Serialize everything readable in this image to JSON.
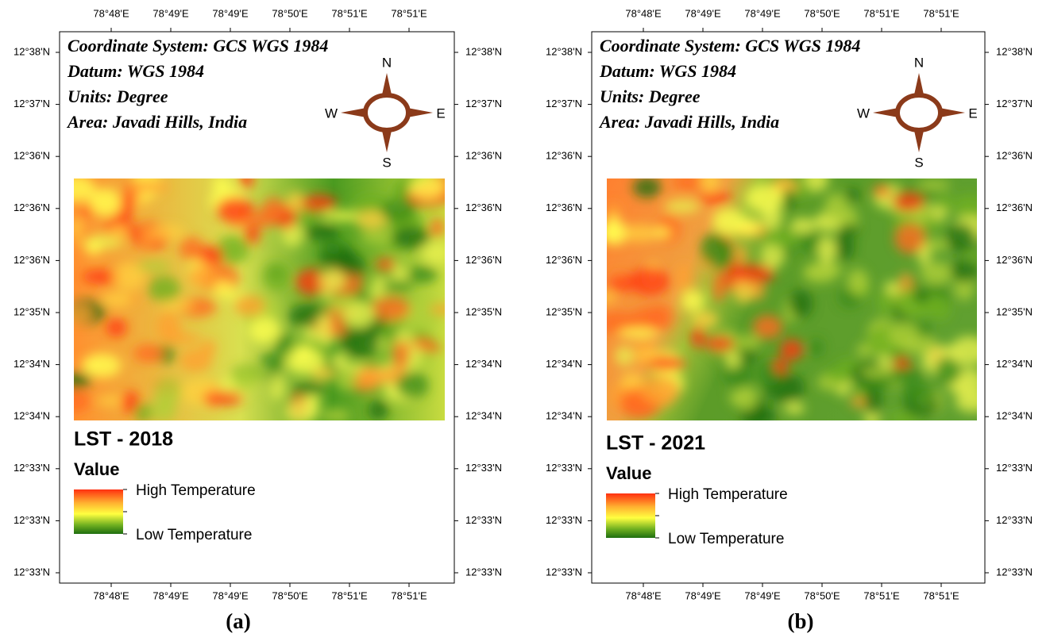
{
  "panels": [
    {
      "caption": "(a)",
      "title": "LST - 2018",
      "info": [
        "Coordinate System: GCS WGS 1984",
        "Datum: WGS 1984",
        "Units: Degree",
        "Area: Javadi Hills, India"
      ],
      "compass": {
        "north": "N",
        "east": "E",
        "south": "S",
        "west": "W"
      },
      "legend": {
        "title": "Value",
        "high": "High Temperature",
        "low": "Low Temperature"
      },
      "lon_labels": [
        "78°48'E",
        "78°49'E",
        "78°49'E",
        "78°50'E",
        "78°51'E",
        "78°51'E"
      ],
      "lat_labels": [
        "12°38'N",
        "12°37'N",
        "12°36'N",
        "12°36'N",
        "12°36'N",
        "12°35'N",
        "12°34'N",
        "12°34'N",
        "12°33'N",
        "12°33'N",
        "12°33'N"
      ]
    },
    {
      "caption": "(b)",
      "title": "LST - 2021",
      "info": [
        "Coordinate System: GCS WGS 1984",
        "Datum: WGS 1984",
        "Units: Degree",
        "Area: Javadi Hills, India"
      ],
      "compass": {
        "north": "N",
        "east": "E",
        "south": "S",
        "west": "W"
      },
      "legend": {
        "title": "Value",
        "high": "High Temperature",
        "low": "Low Temperature"
      },
      "lon_labels": [
        "78°48'E",
        "78°49'E",
        "78°49'E",
        "78°50'E",
        "78°51'E",
        "78°51'E"
      ],
      "lat_labels": [
        "12°38'N",
        "12°37'N",
        "12°36'N",
        "12°36'N",
        "12°36'N",
        "12°35'N",
        "12°34'N",
        "12°34'N",
        "12°33'N",
        "12°33'N",
        "12°33'N"
      ]
    }
  ]
}
